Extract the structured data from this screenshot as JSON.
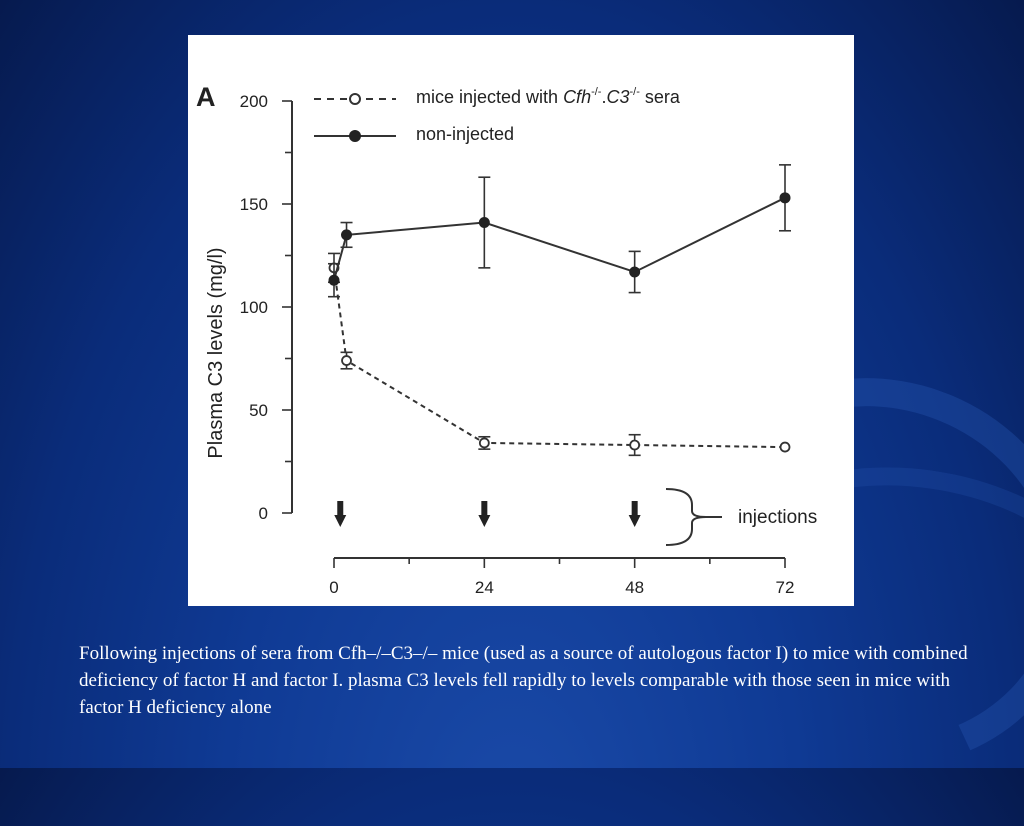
{
  "caption": "Following injections of sera from Cfh–/–C3–/– mice (used as a source of autologous factor I) to mice with combined deficiency of factor H and factor I. plasma C3 levels fell rapidly to levels comparable with those seen in mice with factor H deficiency alone",
  "chart_data": {
    "type": "line",
    "panel_label": "A",
    "title": "",
    "ylabel": "Plasma C3 levels (mg/l)",
    "xlabel": "",
    "ylim": [
      0,
      200
    ],
    "xlim": [
      0,
      72
    ],
    "yticks": [
      "0",
      "50",
      "100",
      "150",
      "200"
    ],
    "xticks": [
      "0",
      "24",
      "48",
      "72"
    ],
    "legend_position": "top",
    "series": [
      {
        "name": "mice injected with Cfh-/-.C3-/- sera",
        "legend_prefix": "mice injected with ",
        "legend_italic": "Cfh",
        "legend_sup1": "-/-",
        "legend_mid": ".",
        "legend_italic2": "C3",
        "legend_sup2": "-/-",
        "legend_suffix": " sera",
        "style": "dashed-open-circle",
        "points": [
          {
            "x": 0,
            "y": 119,
            "err": 7
          },
          {
            "x": 2,
            "y": 74,
            "err": 4
          },
          {
            "x": 24,
            "y": 34,
            "err": 3
          },
          {
            "x": 48,
            "y": 33,
            "err": 5
          },
          {
            "x": 72,
            "y": 32,
            "err": 0
          }
        ]
      },
      {
        "name": "non-injected",
        "style": "solid-filled-circle",
        "points": [
          {
            "x": 0,
            "y": 113,
            "err": 8
          },
          {
            "x": 2,
            "y": 135,
            "err": 6
          },
          {
            "x": 24,
            "y": 141,
            "err": 22
          },
          {
            "x": 48,
            "y": 117,
            "err": 10
          },
          {
            "x": 72,
            "y": 153,
            "err": 16
          }
        ]
      }
    ],
    "injections": {
      "label": "injections",
      "times": [
        1,
        24,
        48
      ]
    }
  }
}
